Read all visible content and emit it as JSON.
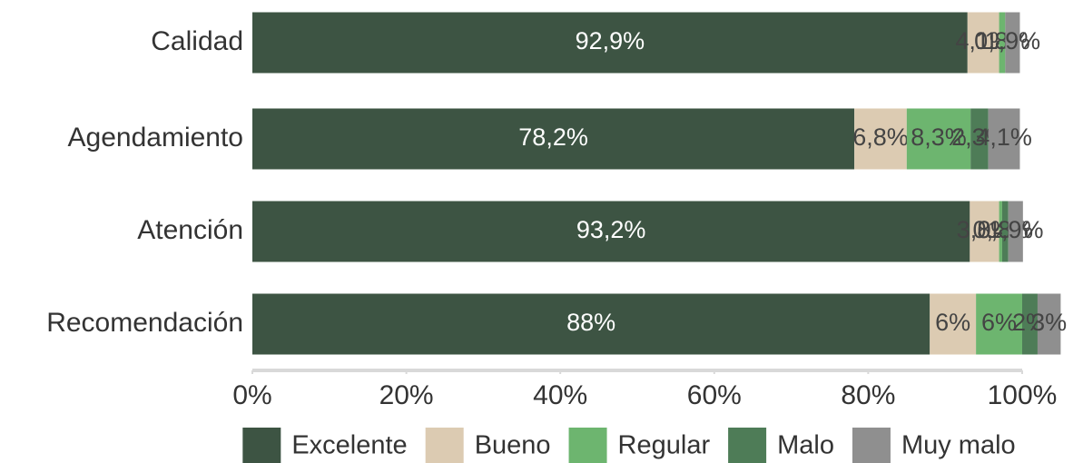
{
  "chart_data": {
    "type": "stacked_barh",
    "categories": [
      "Calidad",
      "Agendamiento",
      "Atención",
      "Recomendación"
    ],
    "series": [
      {
        "name": "Excelente",
        "color": "#3d5443",
        "values": [
          92.9,
          78.2,
          93.2,
          88
        ],
        "value_labels": [
          "92,9%",
          "78,2%",
          "93,2%",
          "88%"
        ]
      },
      {
        "name": "Bueno",
        "color": "#dccbb2",
        "values": [
          4.1,
          6.8,
          3.8,
          6
        ],
        "value_labels": [
          "4,1%",
          "6,8%",
          "3,8%",
          "6%"
        ]
      },
      {
        "name": "Regular",
        "color": "#6db56f",
        "values": [
          0.8,
          8.3,
          0.4,
          6
        ],
        "value_labels": [
          "0,8%",
          "8,3%",
          "0,4%",
          "6%"
        ]
      },
      {
        "name": "Malo",
        "color": "#4e7c57",
        "values": [
          null,
          2.3,
          0.8,
          2
        ],
        "value_labels": [
          null,
          "2,3%",
          "0,8%",
          "2%"
        ]
      },
      {
        "name": "Muy malo",
        "color": "#8f8f8f",
        "values": [
          1.9,
          4.1,
          1.9,
          3
        ],
        "value_labels": [
          "1,9%",
          "4,1%",
          "1,9%",
          "3%"
        ]
      }
    ],
    "xlim": [
      0,
      100
    ],
    "xticks": [
      {
        "value": 0,
        "label": "0%"
      },
      {
        "value": 20,
        "label": "20%"
      },
      {
        "value": 40,
        "label": "40%"
      },
      {
        "value": 60,
        "label": "60%"
      },
      {
        "value": 80,
        "label": "80%"
      },
      {
        "value": 100,
        "label": "100%"
      }
    ],
    "legend": "bottom"
  }
}
